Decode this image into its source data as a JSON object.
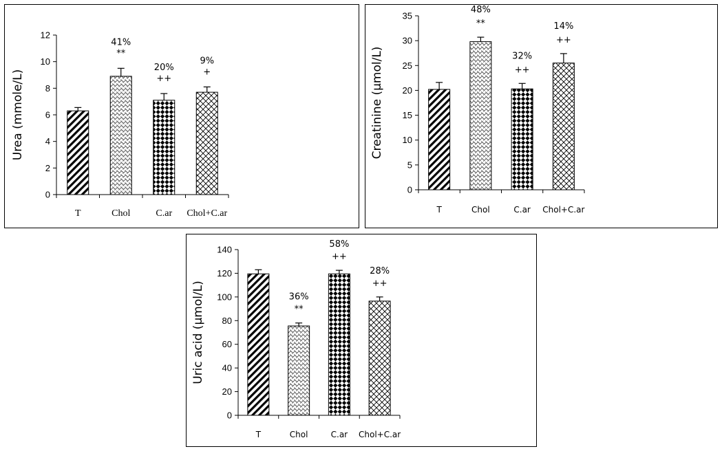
{
  "chart_data": [
    {
      "type": "bar",
      "ylabel": "Urea (mmole/L)",
      "categories": [
        "T",
        "Chol",
        "C.ar",
        "Chol+C.ar"
      ],
      "values": [
        6.3,
        8.9,
        7.1,
        7.7
      ],
      "errors": [
        0.25,
        0.6,
        0.5,
        0.4
      ],
      "percent_labels": [
        "",
        "41%",
        "20%",
        "9%"
      ],
      "significance": [
        "",
        "**",
        "++",
        "+"
      ],
      "ylim": [
        0,
        12
      ],
      "yticks": [
        "0",
        "2",
        "4",
        "6",
        "8",
        "10",
        "12"
      ],
      "patterns": [
        "diag-stripes",
        "wave-weave",
        "checker-diamond",
        "diagonal-cross"
      ]
    },
    {
      "type": "bar",
      "ylabel": "Creatinine (µmol/L)",
      "categories": [
        "T",
        "Chol",
        "C.ar",
        "Chol+C.ar"
      ],
      "values": [
        20.2,
        29.8,
        20.3,
        25.5
      ],
      "errors": [
        1.4,
        0.9,
        1.1,
        1.9
      ],
      "percent_labels": [
        "",
        "48%",
        "32%",
        "14%"
      ],
      "significance": [
        "",
        "**",
        "++",
        "++"
      ],
      "ylim": [
        0,
        35
      ],
      "yticks": [
        "0",
        "5",
        "10",
        "15",
        "20",
        "25",
        "30",
        "35"
      ],
      "patterns": [
        "diag-stripes",
        "wave-weave",
        "checker-diamond",
        "diagonal-cross"
      ]
    },
    {
      "type": "bar",
      "ylabel": "Uric acid (µmol/L)",
      "categories": [
        "T",
        "Chol",
        "C.ar",
        "Chol+C.ar"
      ],
      "values": [
        119.5,
        75.5,
        119.5,
        96.5
      ],
      "errors": [
        3.5,
        2.5,
        3.0,
        3.5
      ],
      "percent_labels": [
        "",
        "36%",
        "58%",
        "28%"
      ],
      "significance": [
        "",
        "**",
        "++",
        "++"
      ],
      "ylim": [
        0,
        140
      ],
      "yticks": [
        "0",
        "20",
        "40",
        "60",
        "80",
        "100",
        "120",
        "140"
      ],
      "patterns": [
        "diag-stripes",
        "wave-weave",
        "checker-diamond",
        "diagonal-cross"
      ]
    }
  ]
}
